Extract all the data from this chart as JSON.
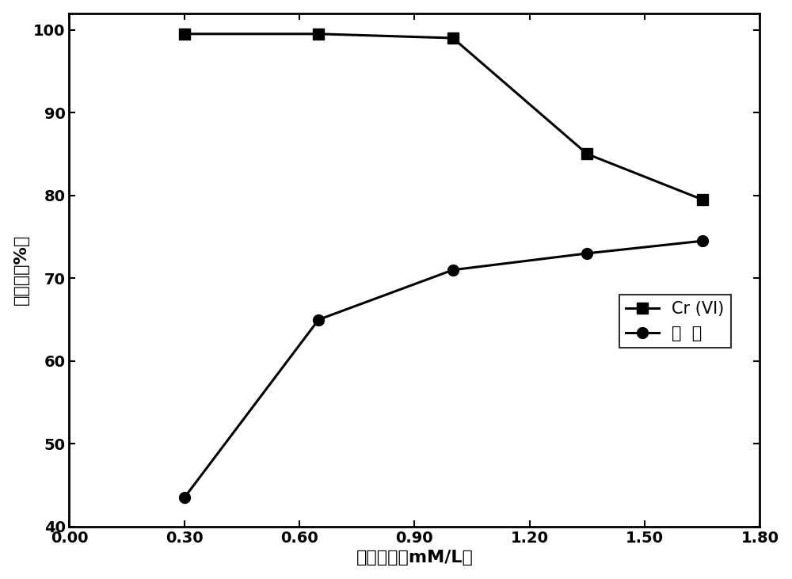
{
  "cr_x": [
    0.3,
    0.65,
    1.0,
    1.35,
    1.65
  ],
  "cr_y": [
    99.5,
    99.5,
    99.0,
    85.0,
    79.5
  ],
  "phenol_x": [
    0.3,
    0.65,
    1.0,
    1.35,
    1.65
  ],
  "phenol_y": [
    43.5,
    65.0,
    71.0,
    73.0,
    74.5
  ],
  "xlabel": "过硫酸钙（mM/L）",
  "ylabel": "去除率（%）",
  "cr_label": "Cr (VI)",
  "phenol_label": "苯  酚",
  "xlim": [
    0.0,
    1.8
  ],
  "ylim": [
    40,
    102
  ],
  "xticks": [
    0.0,
    0.3,
    0.6,
    0.9,
    1.2,
    1.5,
    1.8
  ],
  "yticks": [
    40,
    50,
    60,
    70,
    80,
    90,
    100
  ],
  "line_color": "#000000",
  "marker_cr": "s",
  "marker_phenol": "o",
  "markersize": 10,
  "linewidth": 2.2,
  "label_fontsize": 16,
  "tick_fontsize": 14,
  "legend_fontsize": 15,
  "background_color": "#ffffff"
}
